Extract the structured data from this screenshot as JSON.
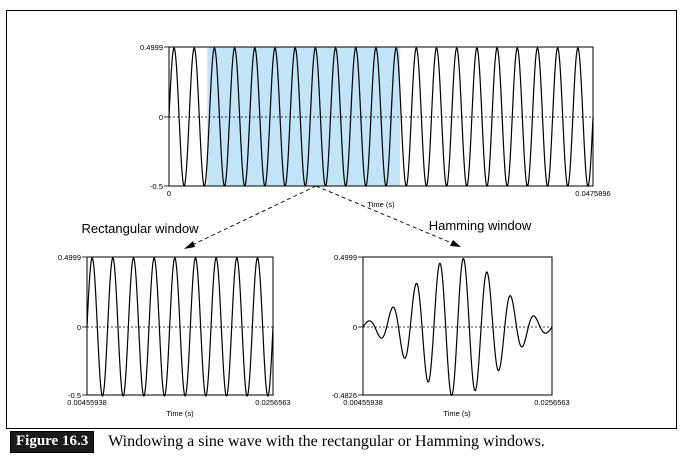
{
  "caption": {
    "label": "Figure 16.3",
    "text": "Windowing a sine wave with the rectangular or Hamming windows."
  },
  "top_plot": {
    "y_max": "0.4999",
    "y_zero": "0",
    "y_min": "-0.5",
    "x_min": "0",
    "x_max": "0.0475896",
    "x_label": "Time (s)",
    "cycles": 21,
    "highlight_range": [
      0.09,
      0.545
    ],
    "highlight_color": "#c2e4f8"
  },
  "rect_plot": {
    "heading": "Rectangular window",
    "y_max": "0.4999",
    "y_zero": "0",
    "y_min": "-0.5",
    "x_min": "0.00455938",
    "x_max": "0.0256563",
    "x_label": "Time (s)",
    "cycles": 9
  },
  "hamm_plot": {
    "heading": "Hamming window",
    "y_max": "0.4999",
    "y_zero": "0",
    "y_min": "-0.4826",
    "x_min": "0.00455938",
    "x_max": "0.0256563",
    "x_label": "Time (s)",
    "cycles": 8
  }
}
